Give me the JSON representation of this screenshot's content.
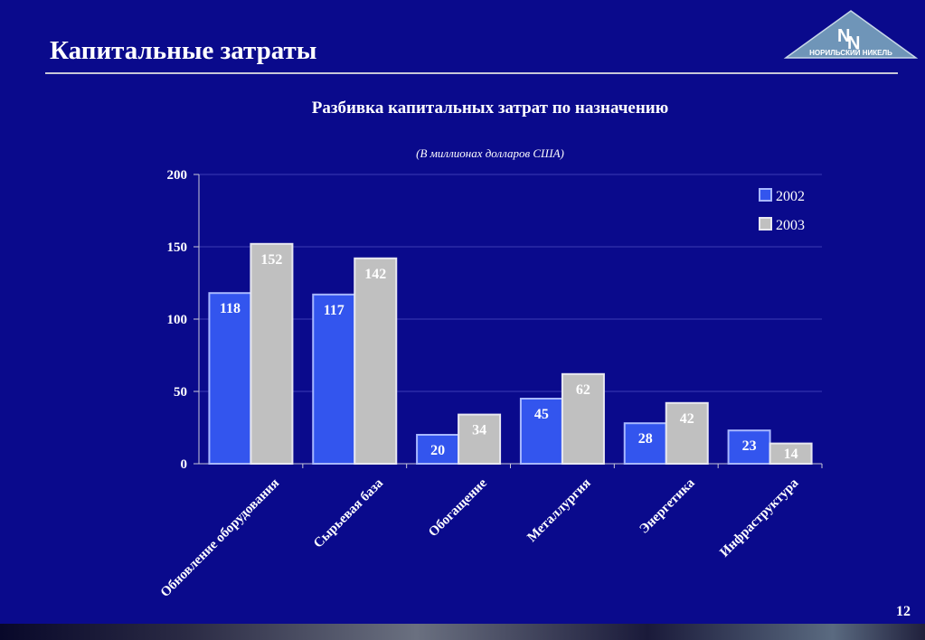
{
  "header": {
    "title": "Капитальные затраты",
    "logo_text": "НОРИЛЬСКИЙ НИКЕЛЬ"
  },
  "footer": {
    "page_number": "12"
  },
  "colors": {
    "background": "#0a0a8c",
    "series_2002": "#3355ee",
    "series_2003": "#c0c0c0"
  },
  "chart_data": {
    "type": "bar",
    "title": "Разбивка капитальных затрат по назначению",
    "subtitle": "(В миллионах долларов США)",
    "categories": [
      "Обновление оборудования",
      "Сырьевая база",
      "Обогащение",
      "Металлургия",
      "Энергетика",
      "Инфраструктура"
    ],
    "series": [
      {
        "name": "2002",
        "values": [
          118,
          117,
          20,
          45,
          28,
          23
        ]
      },
      {
        "name": "2003",
        "values": [
          152,
          142,
          34,
          62,
          42,
          14
        ]
      }
    ],
    "ylim": [
      0,
      200
    ],
    "yticks": [
      0,
      50,
      100,
      150,
      200
    ],
    "grid": true,
    "legend_position": "top-right"
  }
}
